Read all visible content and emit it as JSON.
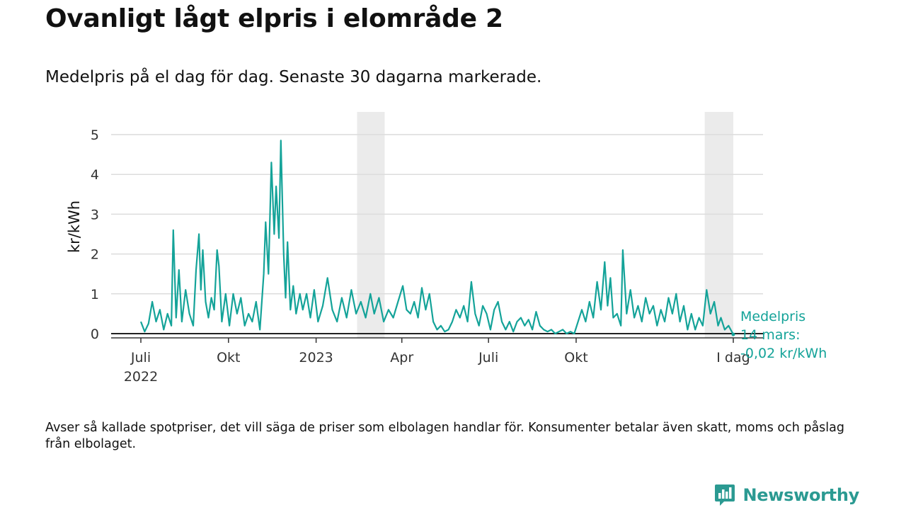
{
  "title": "Ovanligt lågt elpris i elområde 2",
  "subtitle": "Medelpris på el dag för dag.  Senaste 30 dagarna markerade.",
  "footnote": "Avser så kallade spotpriser, det vill säga de priser som elbolagen handlar för. Konsumenter betalar även skatt, moms och påslag från elbolaget.",
  "brand": {
    "name": "Newsworthy",
    "icon": "newsworthy-logo-icon"
  },
  "colors": {
    "line": "#14a399",
    "band": "#ebebeb",
    "grid": "#dcdcdc",
    "axis": "#333333",
    "brand": "#2b9a92"
  },
  "chart_data": {
    "type": "line",
    "ylabel": "kr/kWh",
    "ylim": [
      -0.2,
      5.5
    ],
    "yticks": [
      0,
      1,
      2,
      3,
      4,
      5
    ],
    "x_start": "2022-07-01",
    "x_end": "2024-03-14",
    "xticks": [
      {
        "date": "2022-07-01",
        "lines": [
          "Juli",
          "2022"
        ]
      },
      {
        "date": "2022-10-01",
        "lines": [
          "Okt"
        ]
      },
      {
        "date": "2023-01-01",
        "lines": [
          "2023"
        ]
      },
      {
        "date": "2023-04-01",
        "lines": [
          "Apr"
        ]
      },
      {
        "date": "2023-07-01",
        "lines": [
          "Juli"
        ]
      },
      {
        "date": "2023-10-01",
        "lines": [
          "Okt"
        ]
      },
      {
        "date": "2024-03-14",
        "lines": [
          "I dag"
        ]
      }
    ],
    "highlight_bands": [
      {
        "start": "2023-02-13",
        "end": "2023-03-14"
      },
      {
        "start": "2024-02-13",
        "end": "2024-03-14"
      }
    ],
    "end_label": {
      "lines": [
        "Medelpris",
        "14 mars:",
        "-0,02 kr/kWh"
      ]
    },
    "series": [
      {
        "points": [
          [
            "2022-07-01",
            0.3
          ],
          [
            "2022-07-05",
            0.05
          ],
          [
            "2022-07-09",
            0.25
          ],
          [
            "2022-07-13",
            0.8
          ],
          [
            "2022-07-17",
            0.3
          ],
          [
            "2022-07-21",
            0.6
          ],
          [
            "2022-07-25",
            0.1
          ],
          [
            "2022-07-29",
            0.5
          ],
          [
            "2022-08-02",
            0.2
          ],
          [
            "2022-08-04",
            2.6
          ],
          [
            "2022-08-07",
            0.4
          ],
          [
            "2022-08-10",
            1.6
          ],
          [
            "2022-08-13",
            0.3
          ],
          [
            "2022-08-17",
            1.1
          ],
          [
            "2022-08-21",
            0.5
          ],
          [
            "2022-08-25",
            0.2
          ],
          [
            "2022-08-28",
            1.6
          ],
          [
            "2022-08-31",
            2.5
          ],
          [
            "2022-09-02",
            1.1
          ],
          [
            "2022-09-04",
            2.1
          ],
          [
            "2022-09-07",
            0.8
          ],
          [
            "2022-09-10",
            0.4
          ],
          [
            "2022-09-13",
            0.9
          ],
          [
            "2022-09-16",
            0.6
          ],
          [
            "2022-09-19",
            2.1
          ],
          [
            "2022-09-21",
            1.7
          ],
          [
            "2022-09-24",
            0.3
          ],
          [
            "2022-09-28",
            1.0
          ],
          [
            "2022-10-02",
            0.2
          ],
          [
            "2022-10-06",
            1.0
          ],
          [
            "2022-10-10",
            0.5
          ],
          [
            "2022-10-14",
            0.9
          ],
          [
            "2022-10-18",
            0.2
          ],
          [
            "2022-10-22",
            0.5
          ],
          [
            "2022-10-26",
            0.3
          ],
          [
            "2022-10-30",
            0.8
          ],
          [
            "2022-11-03",
            0.1
          ],
          [
            "2022-11-07",
            1.5
          ],
          [
            "2022-11-09",
            2.8
          ],
          [
            "2022-11-12",
            1.5
          ],
          [
            "2022-11-15",
            4.3
          ],
          [
            "2022-11-18",
            2.5
          ],
          [
            "2022-11-20",
            3.7
          ],
          [
            "2022-11-23",
            2.4
          ],
          [
            "2022-11-25",
            4.85
          ],
          [
            "2022-11-28",
            2.0
          ],
          [
            "2022-11-30",
            0.9
          ],
          [
            "2022-12-02",
            2.3
          ],
          [
            "2022-12-05",
            0.6
          ],
          [
            "2022-12-08",
            1.2
          ],
          [
            "2022-12-11",
            0.5
          ],
          [
            "2022-12-15",
            1.0
          ],
          [
            "2022-12-18",
            0.6
          ],
          [
            "2022-12-22",
            1.0
          ],
          [
            "2022-12-26",
            0.4
          ],
          [
            "2022-12-30",
            1.1
          ],
          [
            "2023-01-03",
            0.3
          ],
          [
            "2023-01-08",
            0.7
          ],
          [
            "2023-01-13",
            1.4
          ],
          [
            "2023-01-18",
            0.6
          ],
          [
            "2023-01-23",
            0.3
          ],
          [
            "2023-01-28",
            0.9
          ],
          [
            "2023-02-02",
            0.4
          ],
          [
            "2023-02-07",
            1.1
          ],
          [
            "2023-02-12",
            0.5
          ],
          [
            "2023-02-17",
            0.8
          ],
          [
            "2023-02-22",
            0.4
          ],
          [
            "2023-02-27",
            1.0
          ],
          [
            "2023-03-03",
            0.5
          ],
          [
            "2023-03-08",
            0.9
          ],
          [
            "2023-03-13",
            0.3
          ],
          [
            "2023-03-18",
            0.6
          ],
          [
            "2023-03-23",
            0.4
          ],
          [
            "2023-03-28",
            0.8
          ],
          [
            "2023-04-02",
            1.2
          ],
          [
            "2023-04-06",
            0.6
          ],
          [
            "2023-04-10",
            0.5
          ],
          [
            "2023-04-14",
            0.8
          ],
          [
            "2023-04-18",
            0.4
          ],
          [
            "2023-04-22",
            1.15
          ],
          [
            "2023-04-26",
            0.6
          ],
          [
            "2023-04-30",
            1.0
          ],
          [
            "2023-05-04",
            0.3
          ],
          [
            "2023-05-08",
            0.1
          ],
          [
            "2023-05-12",
            0.2
          ],
          [
            "2023-05-16",
            0.05
          ],
          [
            "2023-05-20",
            0.1
          ],
          [
            "2023-05-24",
            0.3
          ],
          [
            "2023-05-28",
            0.6
          ],
          [
            "2023-06-01",
            0.4
          ],
          [
            "2023-06-05",
            0.7
          ],
          [
            "2023-06-09",
            0.3
          ],
          [
            "2023-06-13",
            1.3
          ],
          [
            "2023-06-17",
            0.5
          ],
          [
            "2023-06-21",
            0.2
          ],
          [
            "2023-06-25",
            0.7
          ],
          [
            "2023-06-29",
            0.5
          ],
          [
            "2023-07-03",
            0.1
          ],
          [
            "2023-07-07",
            0.6
          ],
          [
            "2023-07-11",
            0.8
          ],
          [
            "2023-07-15",
            0.3
          ],
          [
            "2023-07-19",
            0.1
          ],
          [
            "2023-07-23",
            0.3
          ],
          [
            "2023-07-27",
            0.05
          ],
          [
            "2023-07-31",
            0.3
          ],
          [
            "2023-08-04",
            0.4
          ],
          [
            "2023-08-08",
            0.2
          ],
          [
            "2023-08-12",
            0.35
          ],
          [
            "2023-08-16",
            0.1
          ],
          [
            "2023-08-20",
            0.55
          ],
          [
            "2023-08-24",
            0.2
          ],
          [
            "2023-08-28",
            0.1
          ],
          [
            "2023-09-01",
            0.05
          ],
          [
            "2023-09-05",
            0.1
          ],
          [
            "2023-09-09",
            0.0
          ],
          [
            "2023-09-13",
            0.05
          ],
          [
            "2023-09-17",
            0.1
          ],
          [
            "2023-09-21",
            0.0
          ],
          [
            "2023-09-25",
            0.05
          ],
          [
            "2023-09-29",
            0.0
          ],
          [
            "2023-10-03",
            0.3
          ],
          [
            "2023-10-07",
            0.6
          ],
          [
            "2023-10-11",
            0.3
          ],
          [
            "2023-10-15",
            0.8
          ],
          [
            "2023-10-19",
            0.4
          ],
          [
            "2023-10-23",
            1.3
          ],
          [
            "2023-10-27",
            0.6
          ],
          [
            "2023-10-31",
            1.8
          ],
          [
            "2023-11-03",
            0.7
          ],
          [
            "2023-11-06",
            1.4
          ],
          [
            "2023-11-09",
            0.4
          ],
          [
            "2023-11-13",
            0.5
          ],
          [
            "2023-11-17",
            0.2
          ],
          [
            "2023-11-19",
            2.1
          ],
          [
            "2023-11-23",
            0.5
          ],
          [
            "2023-11-27",
            1.1
          ],
          [
            "2023-12-01",
            0.4
          ],
          [
            "2023-12-05",
            0.7
          ],
          [
            "2023-12-09",
            0.3
          ],
          [
            "2023-12-13",
            0.9
          ],
          [
            "2023-12-17",
            0.5
          ],
          [
            "2023-12-21",
            0.7
          ],
          [
            "2023-12-25",
            0.2
          ],
          [
            "2023-12-29",
            0.6
          ],
          [
            "2024-01-02",
            0.3
          ],
          [
            "2024-01-06",
            0.9
          ],
          [
            "2024-01-10",
            0.5
          ],
          [
            "2024-01-14",
            1.0
          ],
          [
            "2024-01-18",
            0.3
          ],
          [
            "2024-01-22",
            0.7
          ],
          [
            "2024-01-26",
            0.1
          ],
          [
            "2024-01-30",
            0.5
          ],
          [
            "2024-02-03",
            0.1
          ],
          [
            "2024-02-07",
            0.4
          ],
          [
            "2024-02-11",
            0.2
          ],
          [
            "2024-02-15",
            1.1
          ],
          [
            "2024-02-19",
            0.5
          ],
          [
            "2024-02-23",
            0.8
          ],
          [
            "2024-02-27",
            0.2
          ],
          [
            "2024-03-01",
            0.4
          ],
          [
            "2024-03-05",
            0.1
          ],
          [
            "2024-03-09",
            0.2
          ],
          [
            "2024-03-14",
            -0.02
          ]
        ]
      }
    ]
  }
}
